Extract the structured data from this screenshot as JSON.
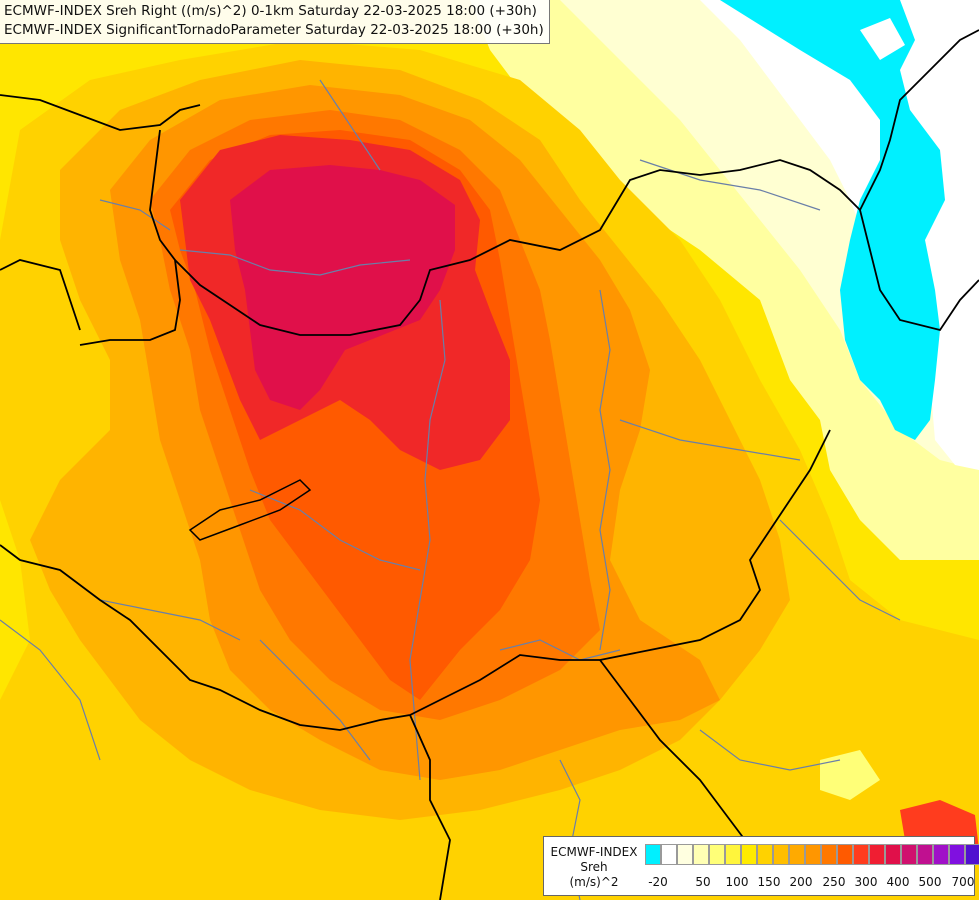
{
  "map": {
    "title_line_1": "ECMWF-INDEX Sreh Right ((m/s)^2) 0-1km Saturday 22-03-2025 18:00 (+30h)",
    "title_line_2": "ECMWF-INDEX SignificantTornadoParameter Saturday 22-03-2025 18:00 (+30h)",
    "colors": {
      "lowest": "#00e8f8",
      "very_pale": "#ffffc4",
      "pale_yellow": "#ffff78",
      "yellow": "#fff000",
      "gold": "#ffd200",
      "orange_light": "#ffb400",
      "orange": "#ff8c00",
      "orange_dark": "#ff6400",
      "red_orange": "#ff3c1e",
      "red": "#f01e32",
      "crimson": "#e0104a",
      "border": "#000000",
      "river": "#6a7fa8"
    }
  },
  "legend": {
    "source": "ECMWF-INDEX",
    "variable": "Sreh",
    "units": "(m/s)^2",
    "swatches": [
      "#00f0ff",
      "#ffffff",
      "#ffffe0",
      "#ffffb4",
      "#ffff78",
      "#fff53c",
      "#ffeb00",
      "#ffd200",
      "#ffbe00",
      "#ffaa00",
      "#ff9600",
      "#ff7800",
      "#ff5a00",
      "#ff3c1e",
      "#f01e32",
      "#e0104a",
      "#d0106e",
      "#c01090",
      "#a010c8",
      "#8010e0",
      "#5010d0",
      "#2010b0",
      "#101090"
    ],
    "ticks": [
      "-20",
      "50",
      "100",
      "150",
      "200",
      "250",
      "300",
      "400",
      "500",
      "700"
    ]
  }
}
